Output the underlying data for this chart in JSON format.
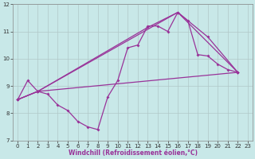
{
  "background_color": "#c8e8e8",
  "grid_color": "#b0c8c8",
  "line_color": "#993399",
  "xlabel": "Windchill (Refroidissement éolien,°C)",
  "ylim": [
    7,
    12
  ],
  "xlim": [
    -0.5,
    23.5
  ],
  "yticks": [
    7,
    8,
    9,
    10,
    11,
    12
  ],
  "xticks": [
    0,
    1,
    2,
    3,
    4,
    5,
    6,
    7,
    8,
    9,
    10,
    11,
    12,
    13,
    14,
    15,
    16,
    17,
    18,
    19,
    20,
    21,
    22,
    23
  ],
  "line1_x": [
    0,
    1,
    2,
    3,
    4,
    5,
    6,
    7,
    8,
    9,
    10,
    11,
    12,
    13,
    14,
    15,
    16,
    17,
    18,
    19,
    20,
    21,
    22
  ],
  "line1_y": [
    8.5,
    9.2,
    8.8,
    8.7,
    8.3,
    8.1,
    7.7,
    7.5,
    7.4,
    8.6,
    9.2,
    10.4,
    10.5,
    11.2,
    11.2,
    11.0,
    11.7,
    11.4,
    10.15,
    10.1,
    9.8,
    9.6,
    9.5
  ],
  "line2_x": [
    0,
    2,
    22
  ],
  "line2_y": [
    8.5,
    8.8,
    9.5
  ],
  "line3_x": [
    0,
    2,
    16,
    22
  ],
  "line3_y": [
    8.5,
    8.8,
    11.7,
    9.5
  ],
  "line4_x": [
    0,
    2,
    13,
    16,
    19,
    22
  ],
  "line4_y": [
    8.5,
    8.8,
    11.15,
    11.7,
    10.8,
    9.5
  ],
  "marker_style": "D",
  "marker_size": 2.0,
  "line_width": 0.9,
  "tick_fontsize": 5,
  "xlabel_fontsize": 5.5
}
